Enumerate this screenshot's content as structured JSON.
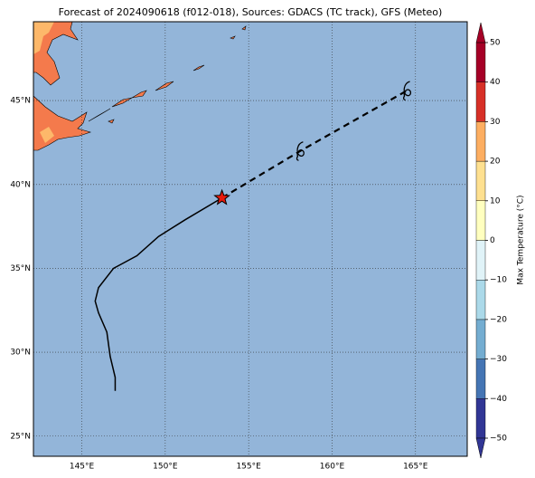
{
  "chart_data": {
    "type": "map",
    "title": "Forecast of 2024090618 (f012-018), Sources: GDACS (TC track), GFS (Meteo)",
    "xlim": [
      142.1,
      168.1
    ],
    "ylim": [
      23.8,
      49.7
    ],
    "xticks": [
      {
        "value": 145,
        "label": "145°E"
      },
      {
        "value": 150,
        "label": "150°E"
      },
      {
        "value": 155,
        "label": "155°E"
      },
      {
        "value": 160,
        "label": "160°E"
      },
      {
        "value": 165,
        "label": "165°E"
      }
    ],
    "yticks": [
      {
        "value": 25,
        "label": "25°N"
      },
      {
        "value": 30,
        "label": "30°N"
      },
      {
        "value": 35,
        "label": "35°N"
      },
      {
        "value": 40,
        "label": "40°N"
      },
      {
        "value": 45,
        "label": "45°N"
      }
    ],
    "grid": true,
    "track": {
      "color": "#000000",
      "lon": [
        147.0,
        147.0,
        146.7,
        146.5,
        146.0,
        145.8,
        146.0,
        146.9,
        148.3,
        149.6,
        151.2,
        153.4
      ],
      "lat": [
        27.7,
        28.5,
        29.75,
        31.2,
        32.35,
        33.05,
        33.85,
        35.0,
        35.75,
        36.9,
        37.9,
        39.2
      ]
    },
    "current_marker_color": "#e8190c",
    "forecast": {
      "color": "#000000",
      "lon": [
        153.4,
        158.1,
        164.5
      ],
      "lat": [
        39.2,
        42.0,
        45.6
      ]
    },
    "colorbar": {
      "label": "Max Temperature (°C)",
      "ticks": [
        {
          "value": -50,
          "label": "−50"
        },
        {
          "value": -40,
          "label": "−40"
        },
        {
          "value": -30,
          "label": "−30"
        },
        {
          "value": -20,
          "label": "−20"
        },
        {
          "value": -10,
          "label": "−10"
        },
        0,
        10,
        20,
        30,
        40,
        50
      ],
      "colors": [
        "#313695",
        "#4575b4",
        "#74add1",
        "#abd9e9",
        "#e0f3f8",
        "#ffffbf",
        "#fee090",
        "#fdae61",
        "#d73027",
        "#a50026"
      ]
    }
  }
}
